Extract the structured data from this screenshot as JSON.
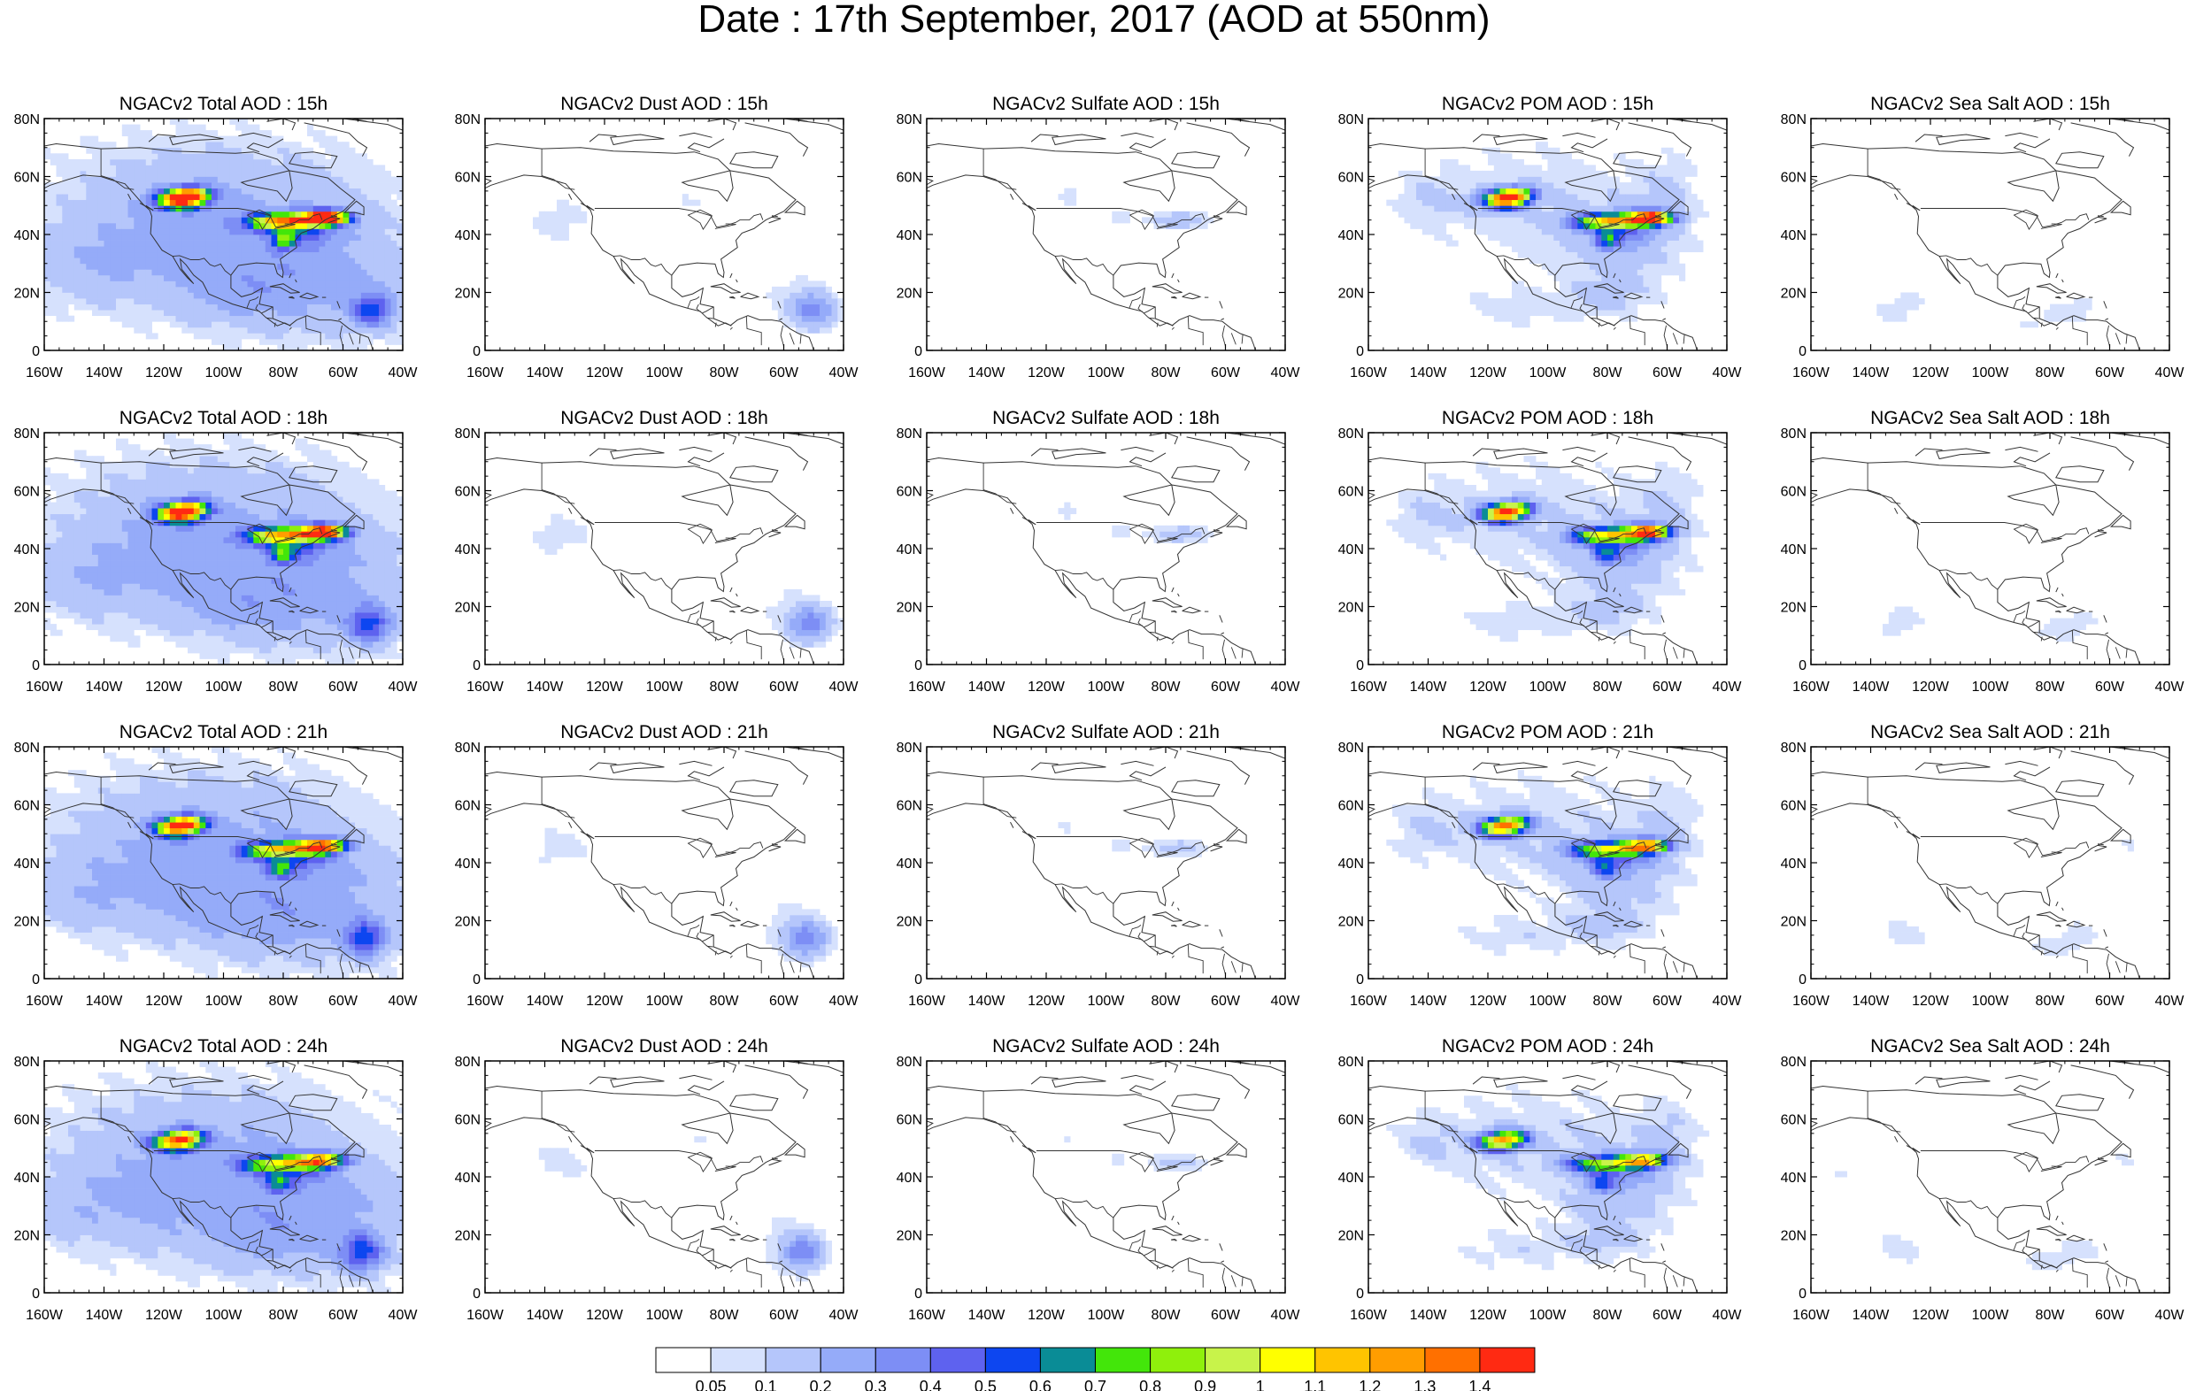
{
  "title": "Date : 17th September, 2017 (AOD at 550nm)",
  "panel_titles": [
    [
      "NGACv2 Total AOD : 15h",
      "NGACv2 Dust AOD : 15h",
      "NGACv2 Sulfate AOD : 15h",
      "NGACv2 POM AOD : 15h",
      "NGACv2 Sea Salt AOD : 15h"
    ],
    [
      "NGACv2 Total AOD : 18h",
      "NGACv2 Dust AOD : 18h",
      "NGACv2 Sulfate AOD : 18h",
      "NGACv2 POM AOD : 18h",
      "NGACv2 Sea Salt AOD : 18h"
    ],
    [
      "NGACv2 Total AOD : 21h",
      "NGACv2 Dust AOD : 21h",
      "NGACv2 Sulfate AOD : 21h",
      "NGACv2 POM AOD : 21h",
      "NGACv2 Sea Salt AOD : 21h"
    ],
    [
      "NGACv2 Total AOD : 24h",
      "NGACv2 Dust AOD : 24h",
      "NGACv2 Sulfate AOD : 24h",
      "NGACv2 POM AOD : 24h",
      "NGACv2 Sea Salt  AOD : 24h"
    ]
  ],
  "lat_ticks": [
    "80N",
    "60N",
    "40N",
    "20N",
    "0"
  ],
  "lon_ticks": [
    "160W",
    "140W",
    "120W",
    "100W",
    "80W",
    "60W",
    "40W"
  ],
  "colorbar": {
    "labels": [
      "0.05",
      "0.1",
      "0.2",
      "0.3",
      "0.4",
      "0.5",
      "0.6",
      "0.7",
      "0.8",
      "0.9",
      "1",
      "1.1",
      "1.2",
      "1.3",
      "1.4"
    ],
    "colors": [
      "#ffffff",
      "#d6e1fd",
      "#b5c6fb",
      "#95abf9",
      "#7d8ef5",
      "#5e62ef",
      "#0d46f0",
      "#0a8c96",
      "#43e60a",
      "#8ff00c",
      "#c8f34a",
      "#ffff00",
      "#ffc400",
      "#ff9d00",
      "#ff7000",
      "#ff2a12"
    ]
  }
}
